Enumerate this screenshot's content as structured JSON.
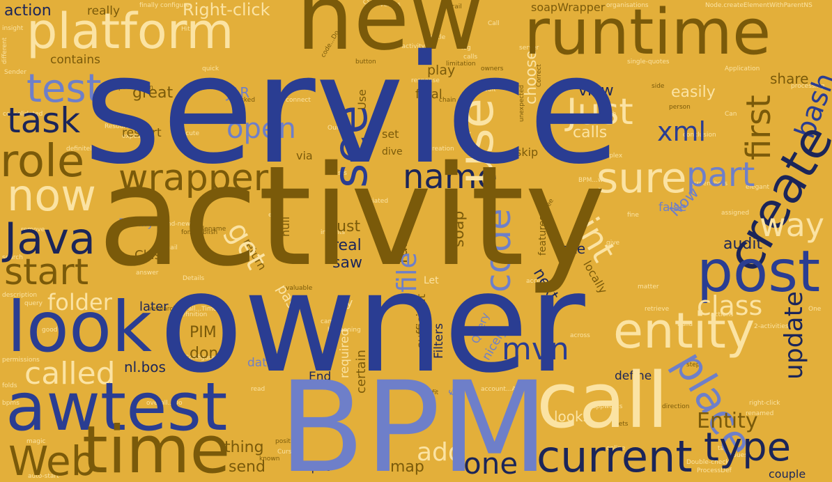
{
  "palette": {
    "background": "#E3AF3A",
    "navy": "#2A3D92",
    "dark_navy": "#1B2559",
    "brown": "#7A5A0A",
    "periwinkle": "#6E7FC9",
    "cream": "#FBE3A3"
  },
  "words": [
    {
      "text": "service",
      "color": "navy"
    },
    {
      "text": "activity",
      "color": "brown"
    },
    {
      "text": "owner",
      "color": "navy"
    },
    {
      "text": "BPM",
      "color": "periwinkle"
    },
    {
      "text": "new",
      "color": "brown"
    },
    {
      "text": "runtime",
      "color": "brown"
    },
    {
      "text": "platform",
      "color": "cream"
    },
    {
      "text": "call",
      "color": "cream"
    },
    {
      "text": "awtest",
      "color": "navy"
    },
    {
      "text": "post",
      "color": "navy"
    },
    {
      "text": "create",
      "color": "dark_navy"
    },
    {
      "text": "entity",
      "color": "cream"
    },
    {
      "text": "look",
      "color": "navy"
    },
    {
      "text": "time",
      "color": "brown"
    },
    {
      "text": "current",
      "color": "dark_navy"
    },
    {
      "text": "now",
      "color": "cream"
    },
    {
      "text": "Java",
      "color": "dark_navy"
    },
    {
      "text": "wrapper",
      "color": "brown"
    },
    {
      "text": "name",
      "color": "dark_navy"
    },
    {
      "text": "see",
      "color": "navy"
    },
    {
      "text": "use",
      "color": "cream"
    },
    {
      "text": "place",
      "color": "periwinkle"
    },
    {
      "text": "type",
      "color": "dark_navy"
    },
    {
      "text": "Web",
      "color": "brown"
    },
    {
      "text": "role",
      "color": "brown"
    },
    {
      "text": "start",
      "color": "brown"
    },
    {
      "text": "test",
      "color": "periwinkle"
    },
    {
      "text": "task",
      "color": "dark_navy"
    },
    {
      "text": "called",
      "color": "cream"
    },
    {
      "text": "sure",
      "color": "cream"
    },
    {
      "text": "part",
      "color": "periwinkle"
    },
    {
      "text": "Just",
      "color": "cream"
    },
    {
      "text": "first",
      "color": "brown"
    },
    {
      "text": "bash",
      "color": "navy"
    },
    {
      "text": "code",
      "color": "periwinkle"
    },
    {
      "text": "int",
      "color": "cream"
    },
    {
      "text": "mvn",
      "color": "navy"
    },
    {
      "text": "way",
      "color": "cream"
    },
    {
      "text": "xml",
      "color": "navy"
    },
    {
      "text": "open",
      "color": "periwinkle"
    },
    {
      "text": "get",
      "color": "cream"
    },
    {
      "text": "file",
      "color": "periwinkle"
    },
    {
      "text": "update",
      "color": "dark_navy"
    },
    {
      "text": "class",
      "color": "cream"
    },
    {
      "text": "one",
      "color": "dark_navy"
    },
    {
      "text": "add",
      "color": "cream"
    },
    {
      "text": "Entity",
      "color": "brown"
    },
    {
      "text": "folder",
      "color": "cream"
    },
    {
      "text": "Right-click",
      "color": "cream"
    },
    {
      "text": "action",
      "color": "dark_navy"
    },
    {
      "text": "really",
      "color": "brown"
    },
    {
      "text": "contains",
      "color": "brown"
    },
    {
      "text": "play",
      "color": "brown"
    },
    {
      "text": "share",
      "color": "brown"
    },
    {
      "text": "soapWrapper",
      "color": "brown"
    },
    {
      "text": "great",
      "color": "brown"
    },
    {
      "text": "JAR",
      "color": "periwinkle"
    },
    {
      "text": "choose",
      "color": "cream"
    },
    {
      "text": "view",
      "color": "dark_navy"
    },
    {
      "text": "easily",
      "color": "cream"
    },
    {
      "text": "restart",
      "color": "brown"
    },
    {
      "text": "calls",
      "color": "cream"
    },
    {
      "text": "via",
      "color": "brown"
    },
    {
      "text": "dive",
      "color": "brown"
    },
    {
      "text": "skip",
      "color": "brown"
    },
    {
      "text": "set",
      "color": "brown"
    },
    {
      "text": "final",
      "color": "brown"
    },
    {
      "text": "Use",
      "color": "brown"
    },
    {
      "text": "rule",
      "color": "brown"
    },
    {
      "text": "just",
      "color": "brown"
    },
    {
      "text": "real",
      "color": "dark_navy"
    },
    {
      "text": "saw",
      "color": "dark_navy"
    },
    {
      "text": "soap",
      "color": "brown"
    },
    {
      "text": "features",
      "color": "brown"
    },
    {
      "text": "next",
      "color": "dark_navy"
    },
    {
      "text": "locally",
      "color": "brown"
    },
    {
      "text": "site",
      "color": "dark_navy"
    },
    {
      "text": "audit",
      "color": "dark_navy"
    },
    {
      "text": "Now",
      "color": "periwinkle"
    },
    {
      "text": "false",
      "color": "periwinkle"
    },
    {
      "text": "null",
      "color": "brown"
    },
    {
      "text": "return",
      "color": "brown"
    },
    {
      "text": "Class",
      "color": "brown"
    },
    {
      "text": "Finally",
      "color": "periwinkle"
    },
    {
      "text": "later",
      "color": "dark_navy"
    },
    {
      "text": "PIM",
      "color": "brown"
    },
    {
      "text": "done",
      "color": "brown"
    },
    {
      "text": "nl.bos",
      "color": "dark_navy"
    },
    {
      "text": "pass",
      "color": "cream"
    },
    {
      "text": "try",
      "color": "cream"
    },
    {
      "text": "Let",
      "color": "cream"
    },
    {
      "text": "certain",
      "color": "brown"
    },
    {
      "text": "sufficient",
      "color": "brown"
    },
    {
      "text": "Filters",
      "color": "dark_navy"
    },
    {
      "text": "Query",
      "color": "periwinkle"
    },
    {
      "text": "nicely",
      "color": "periwinkle"
    },
    {
      "text": "data",
      "color": "periwinkle"
    },
    {
      "text": "End",
      "color": "dark_navy"
    },
    {
      "text": "required",
      "color": "cream"
    },
    {
      "text": "fun",
      "color": "periwinkle"
    },
    {
      "text": "define",
      "color": "dark_navy"
    },
    {
      "text": "looks",
      "color": "cream"
    },
    {
      "text": "couple",
      "color": "dark_navy"
    },
    {
      "text": "thing",
      "color": "brown"
    },
    {
      "text": "send",
      "color": "brown"
    },
    {
      "text": "input",
      "color": "dark_navy"
    },
    {
      "text": "map",
      "color": "brown"
    },
    {
      "text": "configure",
      "color": "cream"
    },
    {
      "text": "finally",
      "color": "cream"
    },
    {
      "text": "versus",
      "color": "cream"
    },
    {
      "text": "organisations",
      "color": "cream"
    },
    {
      "text": "Node.createElementWithParentNS",
      "color": "cream"
    },
    {
      "text": "Create",
      "color": "cream"
    },
    {
      "text": "trail",
      "color": "brown"
    },
    {
      "text": "Call",
      "color": "cream"
    },
    {
      "text": "Oracle",
      "color": "cream"
    },
    {
      "text": "insight",
      "color": "cream"
    },
    {
      "text": "auto-activity",
      "color": "cream"
    },
    {
      "text": "log",
      "color": "cream"
    },
    {
      "text": "server",
      "color": "cream"
    },
    {
      "text": "different",
      "color": "cream"
    },
    {
      "text": "button",
      "color": "brown"
    },
    {
      "text": "limitation",
      "color": "brown"
    },
    {
      "text": "Application",
      "color": "cream"
    },
    {
      "text": "single-quotes",
      "color": "cream"
    },
    {
      "text": "Sender",
      "color": "cream"
    },
    {
      "text": "quick",
      "color": "cream"
    },
    {
      "text": "publication",
      "color": "brown"
    },
    {
      "text": "response",
      "color": "cream"
    },
    {
      "text": "Correct",
      "color": "brown"
    },
    {
      "text": "side",
      "color": "brown"
    },
    {
      "text": "processing",
      "color": "cream"
    },
    {
      "text": "consolidated",
      "color": "cream"
    },
    {
      "text": "connect",
      "color": "cream"
    },
    {
      "text": "default",
      "color": "cream"
    },
    {
      "text": "unexpected",
      "color": "brown"
    },
    {
      "text": "person",
      "color": "brown"
    },
    {
      "text": "Resource",
      "color": "cream"
    },
    {
      "text": "Execute",
      "color": "cream"
    },
    {
      "text": "creation",
      "color": "cream"
    },
    {
      "text": "conclusion",
      "color": "cream"
    },
    {
      "text": "expose",
      "color": "cream"
    },
    {
      "text": "every",
      "color": "cream"
    },
    {
      "text": "definitely",
      "color": "cream"
    },
    {
      "text": "complex",
      "color": "cream"
    },
    {
      "text": "elegant",
      "color": "cream"
    },
    {
      "text": "screenshots",
      "color": "cream"
    },
    {
      "text": "initiated",
      "color": "cream"
    },
    {
      "text": "assigned",
      "color": "cream"
    },
    {
      "text": "brand-new",
      "color": "cream"
    },
    {
      "text": "filename",
      "color": "brown"
    },
    {
      "text": "remove",
      "color": "cream"
    },
    {
      "text": "email",
      "color": "cream"
    },
    {
      "text": "search",
      "color": "cream"
    },
    {
      "text": "answer",
      "color": "cream"
    },
    {
      "text": "Details",
      "color": "cream"
    },
    {
      "text": "description",
      "color": "cream"
    },
    {
      "text": "query",
      "color": "cream"
    },
    {
      "text": "research",
      "color": "brown"
    },
    {
      "text": "definition",
      "color": "cream"
    },
    {
      "text": "valuable",
      "color": "brown"
    },
    {
      "text": "matter",
      "color": "cream"
    },
    {
      "text": "retrieve",
      "color": "cream"
    },
    {
      "text": "build",
      "color": "cream"
    },
    {
      "text": "actions",
      "color": "cream"
    },
    {
      "text": "2-activities",
      "color": "cream"
    },
    {
      "text": "permissions",
      "color": "cream"
    },
    {
      "text": "Configuration",
      "color": "cream"
    },
    {
      "text": "folds",
      "color": "cream"
    },
    {
      "text": "bpms",
      "color": "cream"
    },
    {
      "text": "magic",
      "color": "cream"
    },
    {
      "text": "auto-start",
      "color": "cream"
    },
    {
      "text": "position",
      "color": "brown"
    },
    {
      "text": "Cursor",
      "color": "cream"
    },
    {
      "text": "known",
      "color": "brown"
    },
    {
      "text": "appworks",
      "color": "cream"
    },
    {
      "text": "direction",
      "color": "brown"
    },
    {
      "text": "right-click",
      "color": "cream"
    },
    {
      "text": "renamed",
      "color": "cream"
    },
    {
      "text": "Double-check",
      "color": "cream"
    },
    {
      "text": "ProcessDef",
      "color": "cream"
    },
    {
      "text": "Guess",
      "color": "cream"
    },
    {
      "text": "online",
      "color": "cream"
    },
    {
      "text": "gets",
      "color": "brown"
    },
    {
      "text": "step",
      "color": "brown"
    },
    {
      "text": "across",
      "color": "cream"
    },
    {
      "text": "happening",
      "color": "cream"
    },
    {
      "text": "fit",
      "color": "brown"
    },
    {
      "text": "came",
      "color": "cream"
    },
    {
      "text": "read",
      "color": "cream"
    },
    {
      "text": "good",
      "color": "cream"
    },
    {
      "text": "access",
      "color": "cream"
    },
    {
      "text": "fine",
      "color": "cream"
    },
    {
      "text": "exist",
      "color": "cream"
    },
    {
      "text": "tab",
      "color": "brown"
    },
    {
      "text": "chain",
      "color": "brown"
    },
    {
      "text": "owners",
      "color": "brown"
    },
    {
      "text": "clicked",
      "color": "brown"
    },
    {
      "text": "tree",
      "color": "cream"
    },
    {
      "text": "lists",
      "color": "cream"
    },
    {
      "text": "insights",
      "color": "cream"
    },
    {
      "text": "BPM...we",
      "color": "brown"
    },
    {
      "text": "code...Do",
      "color": "cream"
    },
    {
      "text": "all...Time",
      "color": "cream"
    },
    {
      "text": "account...AWST",
      "color": "brown"
    },
    {
      "text": "for...Publish",
      "color": "cream"
    },
    {
      "text": "overall...Do",
      "color": "cream"
    },
    {
      "text": "Hit",
      "color": "cream"
    },
    {
      "text": "give",
      "color": "cream"
    },
    {
      "text": "One",
      "color": "cream"
    },
    {
      "text": "Can",
      "color": "cream"
    },
    {
      "text": "Our",
      "color": "cream"
    },
    {
      "text": "calls",
      "color": "cream"
    },
    {
      "text": "finish",
      "color": "cream"
    }
  ]
}
